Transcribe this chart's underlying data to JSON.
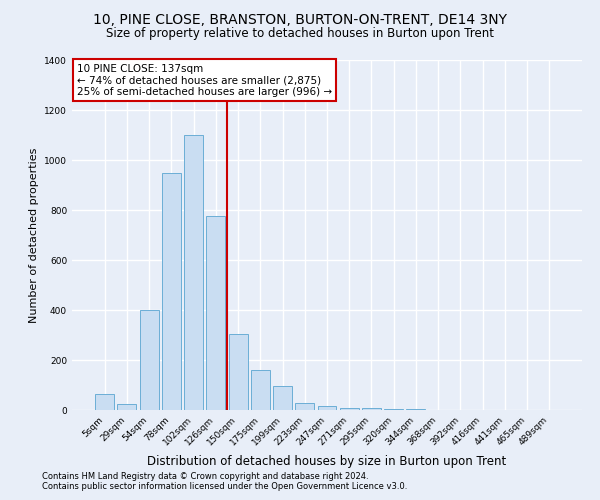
{
  "title": "10, PINE CLOSE, BRANSTON, BURTON-ON-TRENT, DE14 3NY",
  "subtitle": "Size of property relative to detached houses in Burton upon Trent",
  "xlabel": "Distribution of detached houses by size in Burton upon Trent",
  "ylabel": "Number of detached properties",
  "footnote1": "Contains HM Land Registry data © Crown copyright and database right 2024.",
  "footnote2": "Contains public sector information licensed under the Open Government Licence v3.0.",
  "categories": [
    "5sqm",
    "29sqm",
    "54sqm",
    "78sqm",
    "102sqm",
    "126sqm",
    "150sqm",
    "175sqm",
    "199sqm",
    "223sqm",
    "247sqm",
    "271sqm",
    "295sqm",
    "320sqm",
    "344sqm",
    "368sqm",
    "392sqm",
    "416sqm",
    "441sqm",
    "465sqm",
    "489sqm"
  ],
  "values": [
    65,
    25,
    400,
    950,
    1100,
    775,
    305,
    160,
    95,
    30,
    15,
    10,
    8,
    5,
    3,
    2,
    1,
    0,
    0,
    0,
    0
  ],
  "bar_color": "#c9ddf2",
  "bar_edge_color": "#6baed6",
  "vline_x": 5.5,
  "vline_color": "#cc0000",
  "ylim": [
    0,
    1400
  ],
  "yticks": [
    0,
    200,
    400,
    600,
    800,
    1000,
    1200,
    1400
  ],
  "annotation_text": "10 PINE CLOSE: 137sqm\n← 74% of detached houses are smaller (2,875)\n25% of semi-detached houses are larger (996) →",
  "annotation_box_color": "#ffffff",
  "annotation_box_edge": "#cc0000",
  "background_color": "#e8eef8",
  "grid_color": "#ffffff",
  "title_fontsize": 10,
  "subtitle_fontsize": 8.5,
  "annotation_fontsize": 7.5,
  "ylabel_fontsize": 8,
  "xlabel_fontsize": 8.5,
  "tick_fontsize": 6.5,
  "footnote_fontsize": 6
}
